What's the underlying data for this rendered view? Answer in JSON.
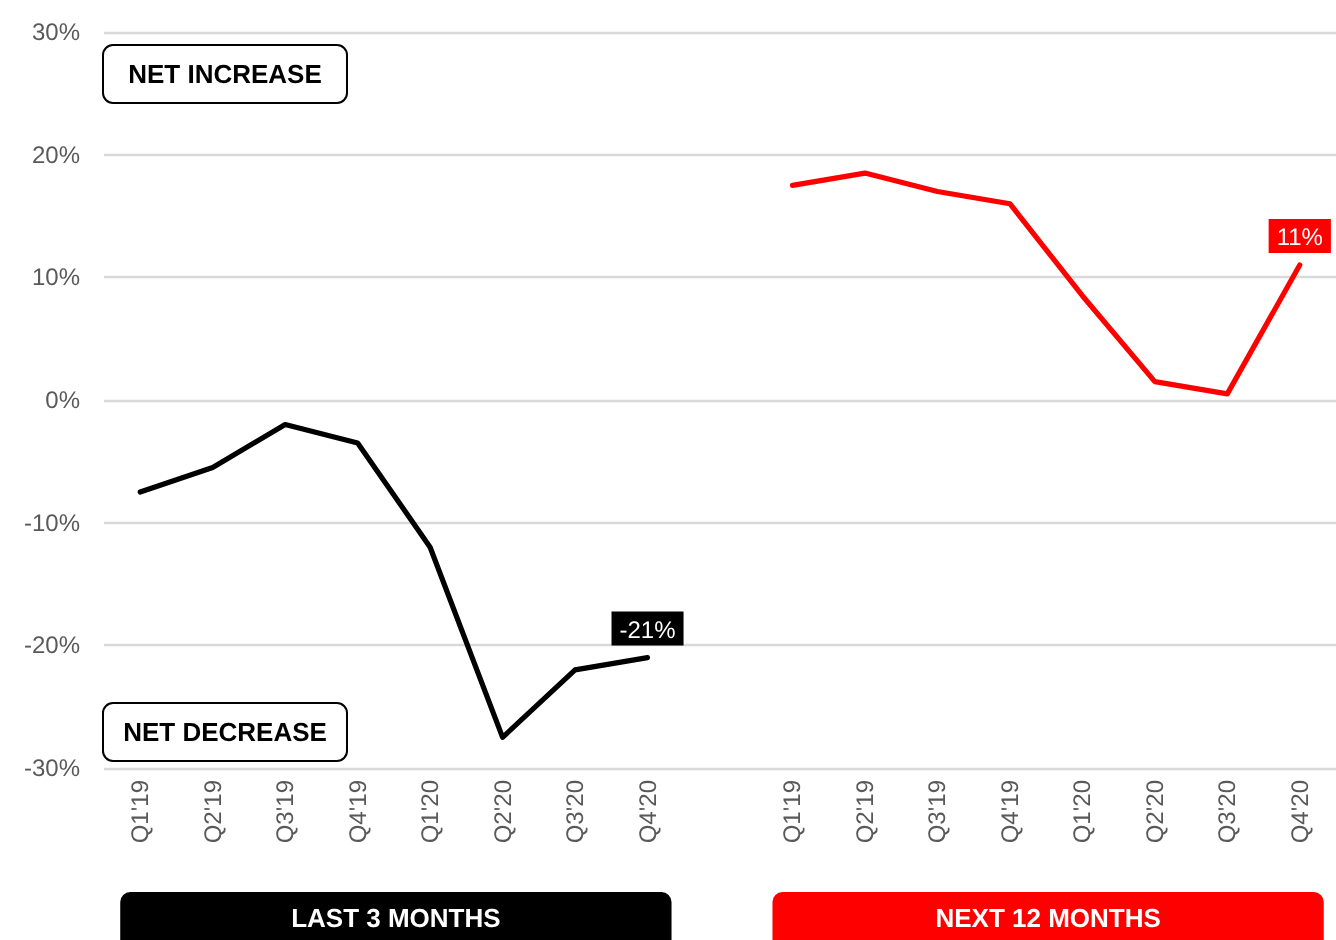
{
  "chart_data": {
    "type": "line",
    "categories": [
      "Q1'19",
      "Q2'19",
      "Q3'19",
      "Q4'19",
      "Q1'20",
      "Q2'20",
      "Q3'20",
      "Q4'20",
      null,
      "Q1'19",
      "Q2'19",
      "Q3'19",
      "Q4'19",
      "Q1'20",
      "Q2'20",
      "Q3'20",
      "Q4'20"
    ],
    "series": [
      {
        "name": "LAST 3 MONTHS",
        "color": "#000000",
        "values": [
          -7.5,
          -5.5,
          -2,
          -3.5,
          -12,
          -27.5,
          -22,
          -21,
          null,
          null,
          null,
          null,
          null,
          null,
          null,
          null,
          null
        ],
        "value_labels": [
          null,
          null,
          null,
          null,
          null,
          null,
          null,
          "-21%",
          null,
          null,
          null,
          null,
          null,
          null,
          null,
          null,
          null
        ]
      },
      {
        "name": "NEXT 12 MONTHS",
        "color": "#ff0000",
        "values": [
          null,
          null,
          null,
          null,
          null,
          null,
          null,
          null,
          null,
          17.5,
          18.5,
          17,
          16,
          8.5,
          1.5,
          0.5,
          11
        ],
        "value_labels": [
          null,
          null,
          null,
          null,
          null,
          null,
          null,
          null,
          null,
          null,
          null,
          null,
          null,
          null,
          null,
          null,
          "11%"
        ]
      }
    ],
    "annotations": [
      "NET INCREASE",
      "NET DECREASE"
    ],
    "ylim": [
      -30,
      30
    ],
    "yticks": [
      {
        "value": -30,
        "label": "-30%"
      },
      {
        "value": -20,
        "label": "-20%"
      },
      {
        "value": -10,
        "label": "-10%"
      },
      {
        "value": 0,
        "label": "0%"
      },
      {
        "value": 10,
        "label": "10%"
      },
      {
        "value": 20,
        "label": "20%"
      },
      {
        "value": 30,
        "label": "30%"
      }
    ],
    "grid": "y",
    "marker": "none",
    "line_style": "solid"
  }
}
